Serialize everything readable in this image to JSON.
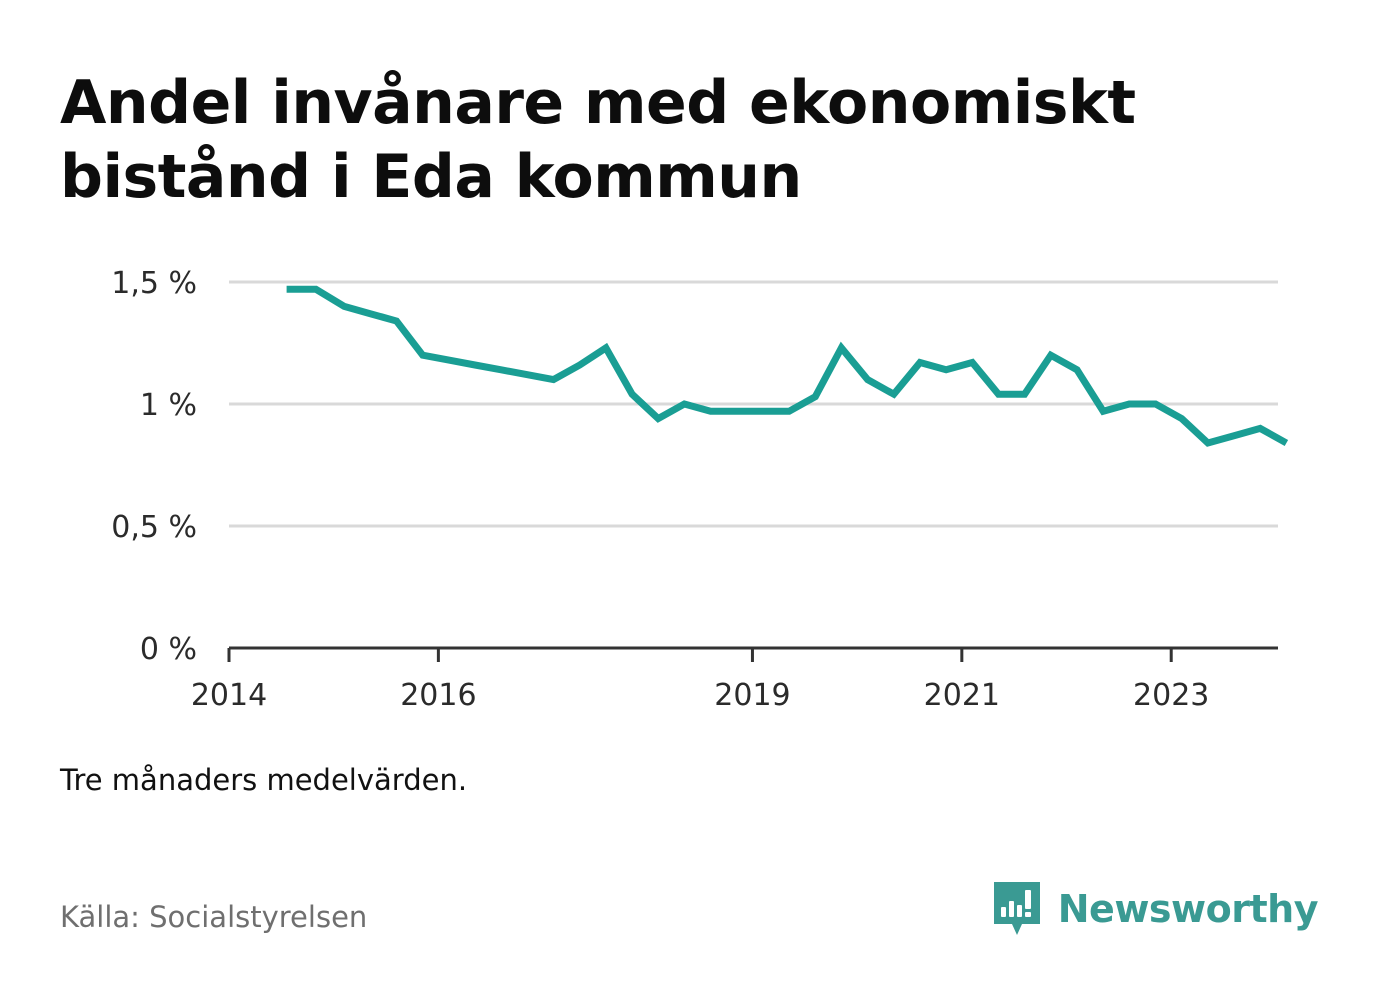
{
  "title": "Andel invånare med ekonomiskt bistånd i Eda kommun",
  "note": "Tre månaders medelvärden.",
  "source": "Källa: Socialstyrelsen",
  "brand": {
    "name": "Newsworthy",
    "icon": "newsworthy-bar-chart-logo-icon"
  },
  "colors": {
    "line": "#1a9e94",
    "grid": "#d9d9d9",
    "axis": "#333333",
    "brand": "#3a9a93"
  },
  "chart_data": {
    "type": "line",
    "title": "Andel invånare med ekonomiskt bistånd i Eda kommun",
    "xlabel": "",
    "ylabel": "",
    "x_unit": "year (quarterly points)",
    "y_unit": "percent",
    "xlim": [
      2014.0,
      2024.0
    ],
    "ylim": [
      0,
      1.5
    ],
    "x_ticks": [
      {
        "value": 2014,
        "label": "2014"
      },
      {
        "value": 2016,
        "label": "2016"
      },
      {
        "value": 2019,
        "label": "2019"
      },
      {
        "value": 2021,
        "label": "2021"
      },
      {
        "value": 2023,
        "label": "2023"
      }
    ],
    "y_ticks": [
      {
        "value": 0,
        "label": "0 %"
      },
      {
        "value": 0.5,
        "label": "0,5 %"
      },
      {
        "value": 1.0,
        "label": "1 %"
      },
      {
        "value": 1.5,
        "label": "1,5 %"
      }
    ],
    "grid": true,
    "legend": "none",
    "series": [
      {
        "points": [
          [
            2014.55,
            1.47
          ],
          [
            2014.83,
            1.47
          ],
          [
            2015.1,
            1.4
          ],
          [
            2015.35,
            1.37
          ],
          [
            2015.6,
            1.34
          ],
          [
            2015.85,
            1.2
          ],
          [
            2016.1,
            1.18
          ],
          [
            2016.35,
            1.16
          ],
          [
            2016.6,
            1.14
          ],
          [
            2016.85,
            1.12
          ],
          [
            2017.1,
            1.1
          ],
          [
            2017.35,
            1.16
          ],
          [
            2017.6,
            1.23
          ],
          [
            2017.85,
            1.04
          ],
          [
            2018.1,
            0.94
          ],
          [
            2018.35,
            1.0
          ],
          [
            2018.6,
            0.97
          ],
          [
            2018.85,
            0.97
          ],
          [
            2019.1,
            0.97
          ],
          [
            2019.35,
            0.97
          ],
          [
            2019.6,
            1.03
          ],
          [
            2019.85,
            1.23
          ],
          [
            2020.1,
            1.1
          ],
          [
            2020.35,
            1.04
          ],
          [
            2020.6,
            1.17
          ],
          [
            2020.85,
            1.14
          ],
          [
            2021.1,
            1.17
          ],
          [
            2021.35,
            1.04
          ],
          [
            2021.6,
            1.04
          ],
          [
            2021.85,
            1.2
          ],
          [
            2022.1,
            1.14
          ],
          [
            2022.35,
            0.97
          ],
          [
            2022.6,
            1.0
          ],
          [
            2022.85,
            1.0
          ],
          [
            2023.1,
            0.94
          ],
          [
            2023.35,
            0.84
          ],
          [
            2023.6,
            0.87
          ],
          [
            2023.85,
            0.9
          ],
          [
            2024.1,
            0.84
          ]
        ]
      }
    ]
  }
}
